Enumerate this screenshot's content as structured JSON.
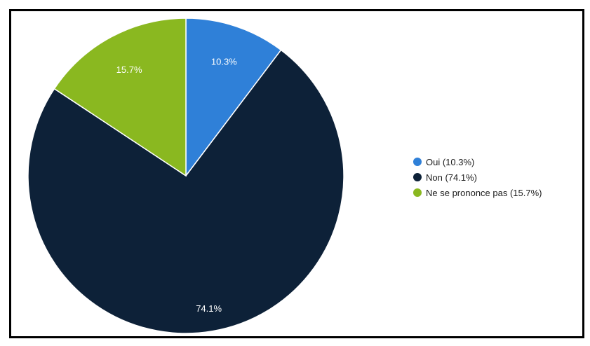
{
  "chart_data": {
    "type": "pie",
    "start": "top",
    "direction": "clockwise",
    "legend_position": "right",
    "slices": [
      {
        "label": "Oui",
        "value": 10.3,
        "value_label": "10.3%",
        "legend": "Oui (10.3%)",
        "color": "#2f80d8"
      },
      {
        "label": "Non",
        "value": 74.1,
        "value_label": "74.1%",
        "legend": "Non (74.1%)",
        "color": "#0d2138"
      },
      {
        "label": "Ne se prononce pas",
        "value": 15.7,
        "value_label": "15.7%",
        "legend": "Ne se prononce pas (15.7%)",
        "color": "#8ab820"
      }
    ]
  }
}
